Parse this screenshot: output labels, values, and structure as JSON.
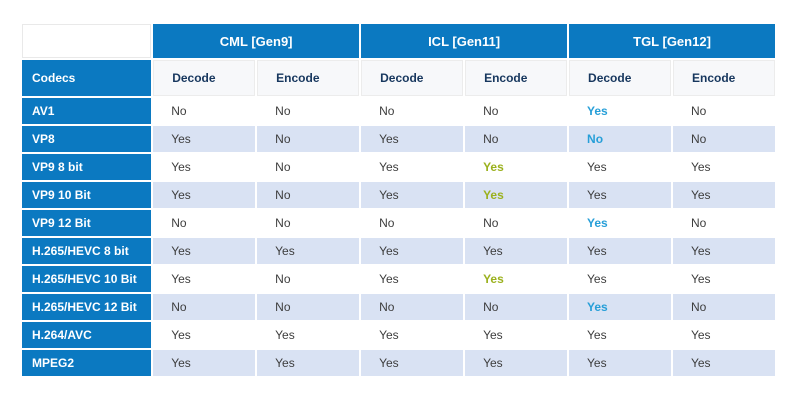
{
  "colors": {
    "header_blue": "#0b79c1",
    "alt_row_blue": "#d9e2f3",
    "plain_row": "#ffffff",
    "subheader_bg": "#f7f8fa",
    "subheader_text": "#17375e",
    "value_text": "#3d3d3d",
    "highlight_blue": "#279fd8",
    "highlight_green": "#9bb11e"
  },
  "chart_data": {
    "type": "table",
    "corner_label": "Codecs",
    "column_groups": [
      "CML [Gen9]",
      "ICL [Gen11]",
      "TGL [Gen12]"
    ],
    "sub_columns": [
      "Decode",
      "Encode",
      "Decode",
      "Encode",
      "Decode",
      "Encode"
    ],
    "rows": [
      {
        "codec": "AV1",
        "values": [
          "No",
          "No",
          "No",
          "No",
          "Yes",
          "No"
        ],
        "highlights": [
          null,
          null,
          null,
          null,
          "blue",
          null
        ]
      },
      {
        "codec": "VP8",
        "values": [
          "Yes",
          "No",
          "Yes",
          "No",
          "No",
          "No"
        ],
        "highlights": [
          null,
          null,
          null,
          null,
          "blue",
          null
        ]
      },
      {
        "codec": "VP9 8 bit",
        "values": [
          "Yes",
          "No",
          "Yes",
          "Yes",
          "Yes",
          "Yes"
        ],
        "highlights": [
          null,
          null,
          null,
          "green",
          null,
          null
        ]
      },
      {
        "codec": "VP9 10 Bit",
        "values": [
          "Yes",
          "No",
          "Yes",
          "Yes",
          "Yes",
          "Yes"
        ],
        "highlights": [
          null,
          null,
          null,
          "green",
          null,
          null
        ]
      },
      {
        "codec": "VP9 12 Bit",
        "values": [
          "No",
          "No",
          "No",
          "No",
          "Yes",
          "No"
        ],
        "highlights": [
          null,
          null,
          null,
          null,
          "blue",
          null
        ]
      },
      {
        "codec": "H.265/HEVC 8 bit",
        "values": [
          "Yes",
          "Yes",
          "Yes",
          "Yes",
          "Yes",
          "Yes"
        ],
        "highlights": [
          null,
          null,
          null,
          null,
          null,
          null
        ]
      },
      {
        "codec": "H.265/HEVC 10 Bit",
        "values": [
          "Yes",
          "No",
          "Yes",
          "Yes",
          "Yes",
          "Yes"
        ],
        "highlights": [
          null,
          null,
          null,
          "green",
          null,
          null
        ]
      },
      {
        "codec": "H.265/HEVC 12 Bit",
        "values": [
          "No",
          "No",
          "No",
          "No",
          "Yes",
          "No"
        ],
        "highlights": [
          null,
          null,
          null,
          null,
          "blue",
          null
        ]
      },
      {
        "codec": "H.264/AVC",
        "values": [
          "Yes",
          "Yes",
          "Yes",
          "Yes",
          "Yes",
          "Yes"
        ],
        "highlights": [
          null,
          null,
          null,
          null,
          null,
          null
        ]
      },
      {
        "codec": "MPEG2",
        "values": [
          "Yes",
          "Yes",
          "Yes",
          "Yes",
          "Yes",
          "Yes"
        ],
        "highlights": [
          null,
          null,
          null,
          null,
          null,
          null
        ]
      }
    ]
  }
}
